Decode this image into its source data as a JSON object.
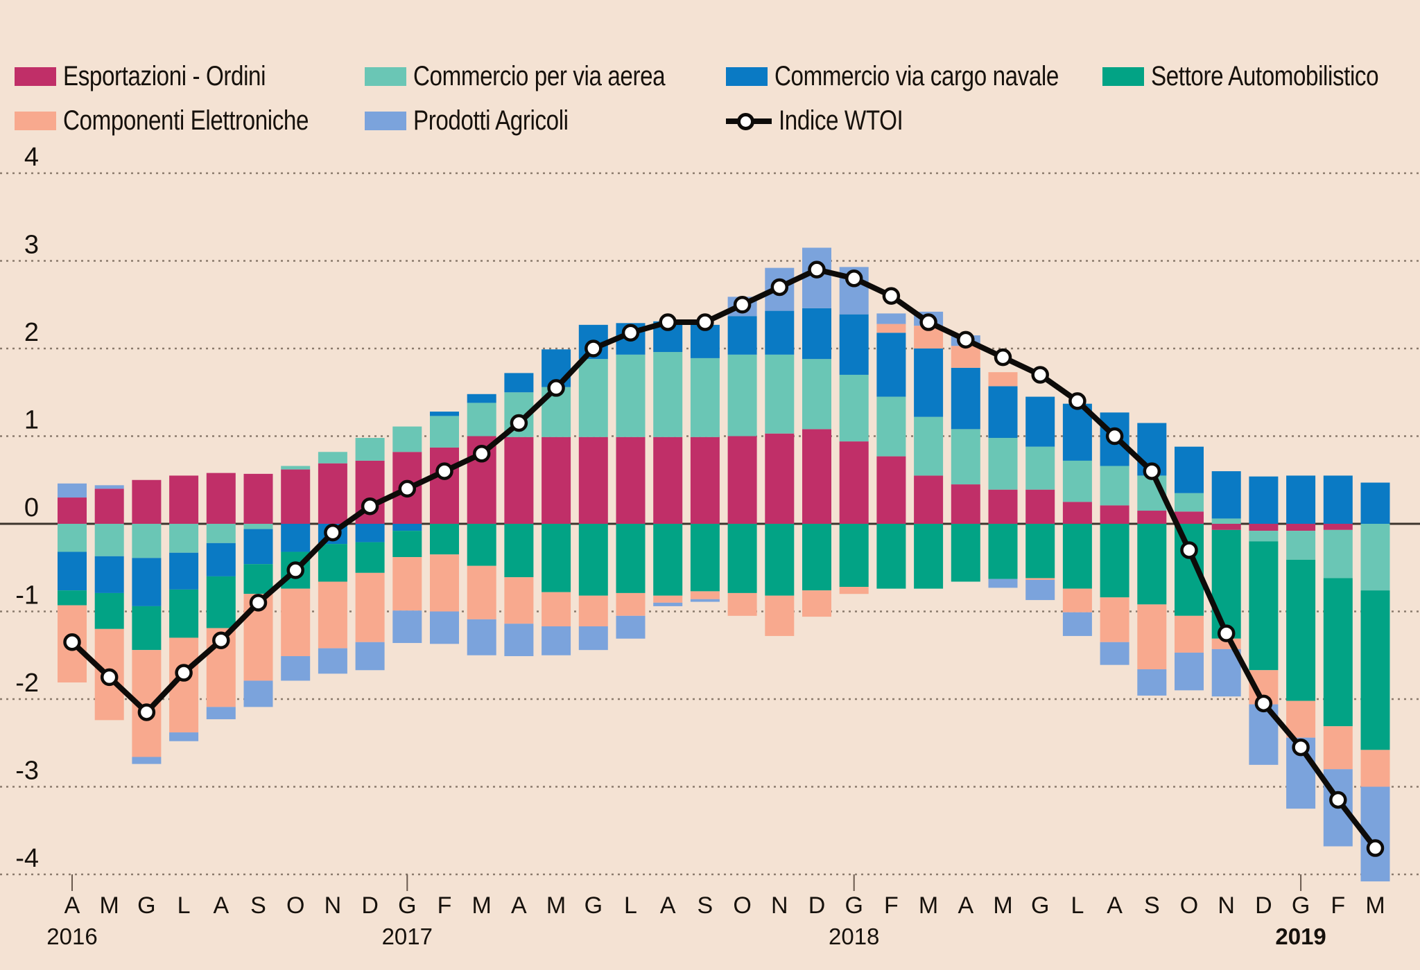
{
  "colors": {
    "background": "#f4e2d3",
    "grid": "#8a7a6c",
    "zero_line": "#3c342c",
    "text": "#16110c"
  },
  "chart_data": {
    "type": "bar",
    "subtype": "stacked-bar-with-line",
    "title": "",
    "xlabel": "",
    "ylabel": "",
    "ylim": [
      -4.4,
      4.6
    ],
    "y_ticks": [
      4,
      3,
      2,
      1,
      0,
      -1,
      -2,
      -3,
      -4
    ],
    "grid": "dotted-horizontal",
    "legend_position": "top",
    "x_labels": [
      "A",
      "M",
      "G",
      "L",
      "A",
      "S",
      "O",
      "N",
      "D",
      "G",
      "F",
      "M",
      "A",
      "M",
      "G",
      "L",
      "A",
      "S",
      "O",
      "N",
      "D",
      "G",
      "F",
      "M",
      "A",
      "M",
      "G",
      "L",
      "A",
      "S",
      "O",
      "N",
      "D",
      "G",
      "F",
      "M"
    ],
    "years": [
      {
        "label": "2016",
        "index": 0,
        "bold": false
      },
      {
        "label": "2017",
        "index": 9,
        "bold": false
      },
      {
        "label": "2018",
        "index": 21,
        "bold": false
      },
      {
        "label": "2019",
        "index": 33,
        "bold": true
      }
    ],
    "series": [
      {
        "name": "Esportazioni - Ordini",
        "color": "#c02f68",
        "values": [
          0.3,
          0.4,
          0.5,
          0.55,
          0.58,
          0.57,
          0.62,
          0.69,
          0.72,
          0.82,
          0.87,
          1.0,
          0.99,
          0.99,
          0.99,
          0.99,
          0.99,
          0.99,
          1.0,
          1.03,
          1.08,
          0.94,
          0.77,
          0.55,
          0.45,
          0.39,
          0.39,
          0.25,
          0.21,
          0.15,
          0.14,
          -0.07,
          -0.08,
          -0.08,
          -0.07,
          0.0
        ]
      },
      {
        "name": "Commercio per via aerea",
        "color": "#6ac6b5",
        "values": [
          -0.32,
          -0.37,
          -0.39,
          -0.33,
          -0.22,
          -0.06,
          0.04,
          0.13,
          0.26,
          0.29,
          0.36,
          0.38,
          0.51,
          0.57,
          0.89,
          0.94,
          0.97,
          0.9,
          0.93,
          0.9,
          0.8,
          0.76,
          0.68,
          0.67,
          0.63,
          0.59,
          0.49,
          0.47,
          0.45,
          0.4,
          0.21,
          0.06,
          -0.12,
          -0.33,
          -0.55,
          -0.76
        ]
      },
      {
        "name": "Commercio via cargo navale",
        "color": "#0a7ac4",
        "values": [
          -0.44,
          -0.42,
          -0.55,
          -0.42,
          -0.38,
          -0.4,
          -0.32,
          -0.23,
          -0.21,
          -0.08,
          0.05,
          0.1,
          0.22,
          0.43,
          0.39,
          0.36,
          0.35,
          0.38,
          0.44,
          0.5,
          0.58,
          0.69,
          0.73,
          0.78,
          0.7,
          0.59,
          0.57,
          0.65,
          0.61,
          0.6,
          0.53,
          0.54,
          0.54,
          0.55,
          0.55,
          0.47
        ]
      },
      {
        "name": "Settore Automobilistico",
        "color": "#02a385",
        "values": [
          -0.17,
          -0.41,
          -0.5,
          -0.55,
          -0.59,
          -0.34,
          -0.42,
          -0.43,
          -0.35,
          -0.3,
          -0.35,
          -0.48,
          -0.61,
          -0.78,
          -0.82,
          -0.79,
          -0.82,
          -0.77,
          -0.79,
          -0.82,
          -0.76,
          -0.72,
          -0.74,
          -0.74,
          -0.66,
          -0.63,
          -0.62,
          -0.74,
          -0.84,
          -0.92,
          -1.05,
          -1.24,
          -1.47,
          -1.61,
          -1.69,
          -1.82
        ]
      },
      {
        "name": "Componenti Elettroniche",
        "color": "#f8a98e",
        "values": [
          -0.88,
          -1.04,
          -1.22,
          -1.08,
          -0.9,
          -0.99,
          -0.77,
          -0.76,
          -0.79,
          -0.61,
          -0.65,
          -0.61,
          -0.53,
          -0.39,
          -0.35,
          -0.26,
          -0.08,
          -0.09,
          -0.26,
          -0.46,
          -0.3,
          -0.08,
          0.1,
          0.26,
          0.25,
          0.16,
          -0.02,
          -0.27,
          -0.51,
          -0.74,
          -0.42,
          -0.12,
          -0.39,
          -0.42,
          -0.49,
          -0.42
        ]
      },
      {
        "name": "Prodotti Agricoli",
        "color": "#7ba3dc",
        "values": [
          0.16,
          0.04,
          -0.08,
          -0.1,
          -0.14,
          -0.3,
          -0.28,
          -0.29,
          -0.32,
          -0.37,
          -0.37,
          -0.41,
          -0.37,
          -0.33,
          -0.27,
          -0.26,
          -0.04,
          -0.03,
          0.22,
          0.49,
          0.69,
          0.54,
          0.12,
          0.16,
          0.12,
          -0.1,
          -0.23,
          -0.27,
          -0.26,
          -0.3,
          -0.43,
          -0.54,
          -0.69,
          -0.81,
          -0.88,
          -1.08
        ]
      }
    ],
    "line": {
      "name": "Indice WTOI",
      "color": "#0d0b09",
      "marker": "white-circle",
      "values": [
        -1.35,
        -1.75,
        -2.15,
        -1.7,
        -1.33,
        -0.9,
        -0.53,
        -0.1,
        0.2,
        0.4,
        0.6,
        0.8,
        1.15,
        1.55,
        2.0,
        2.18,
        2.3,
        2.3,
        2.5,
        2.7,
        2.9,
        2.8,
        2.6,
        2.3,
        2.1,
        1.9,
        1.7,
        1.4,
        1.0,
        0.6,
        -0.3,
        -1.25,
        -2.05,
        -2.55,
        -3.15,
        -3.7
      ]
    }
  }
}
